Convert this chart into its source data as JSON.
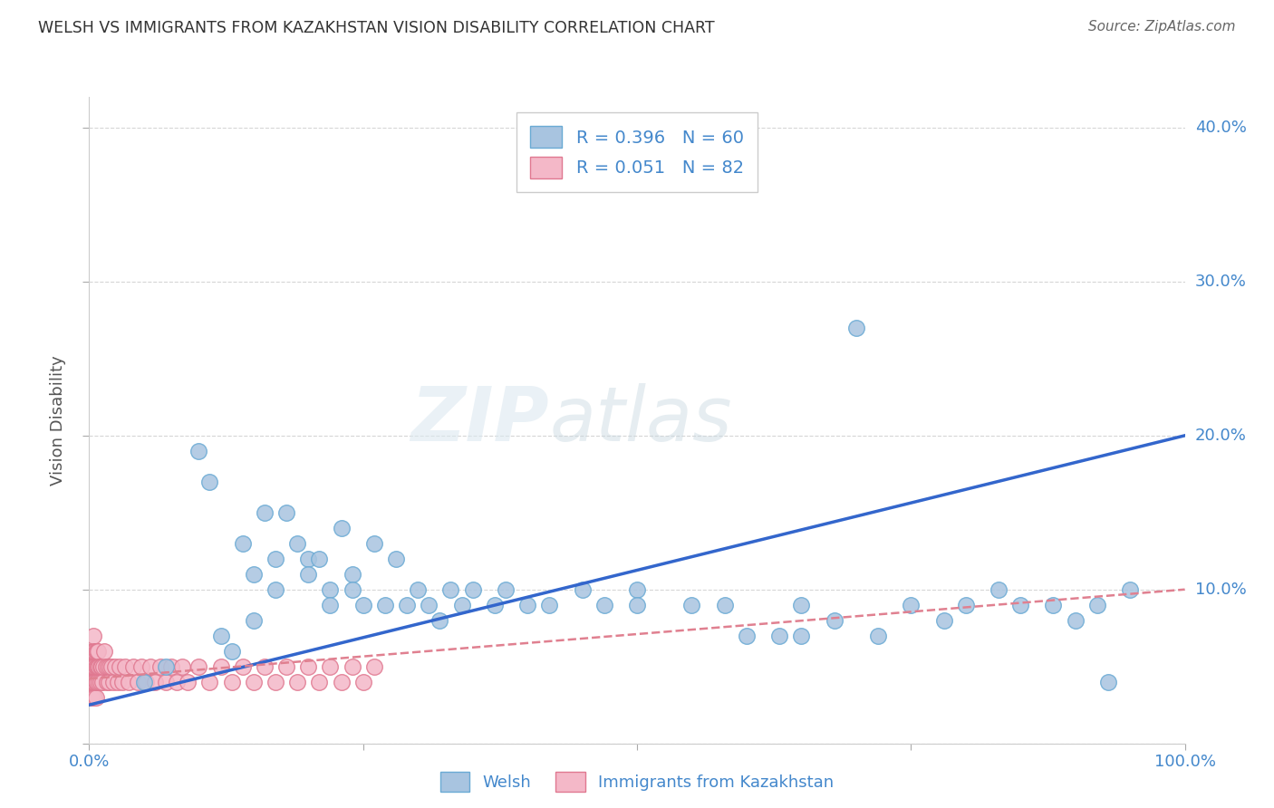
{
  "title": "WELSH VS IMMIGRANTS FROM KAZAKHSTAN VISION DISABILITY CORRELATION CHART",
  "source": "Source: ZipAtlas.com",
  "ylabel": "Vision Disability",
  "xlim": [
    0.0,
    1.0
  ],
  "ylim": [
    0.0,
    0.42
  ],
  "xticks": [
    0.0,
    0.25,
    0.5,
    0.75,
    1.0
  ],
  "xticklabels": [
    "0.0%",
    "",
    "",
    "",
    "100.0%"
  ],
  "yticks": [
    0.0,
    0.1,
    0.2,
    0.3,
    0.4
  ],
  "yticklabels": [
    "",
    "10.0%",
    "20.0%",
    "30.0%",
    "40.0%"
  ],
  "welsh_color": "#a8c4e0",
  "welsh_edge_color": "#6aaad4",
  "kazakh_color": "#f4b8c8",
  "kazakh_edge_color": "#e07890",
  "trendline_welsh_color": "#3366cc",
  "trendline_kazakh_color": "#e08090",
  "background_color": "#ffffff",
  "grid_color": "#cccccc",
  "R_welsh": 0.396,
  "N_welsh": 60,
  "R_kazakh": 0.051,
  "N_kazakh": 82,
  "legend_label_welsh": "Welsh",
  "legend_label_kazakh": "Immigrants from Kazakhstan",
  "title_color": "#404040",
  "axis_color": "#4488cc",
  "watermark_zip": "ZIP",
  "watermark_atlas": "atlas",
  "welsh_x": [
    0.05,
    0.07,
    0.1,
    0.11,
    0.12,
    0.13,
    0.14,
    0.15,
    0.15,
    0.16,
    0.17,
    0.17,
    0.18,
    0.19,
    0.2,
    0.2,
    0.21,
    0.22,
    0.22,
    0.23,
    0.24,
    0.24,
    0.25,
    0.26,
    0.27,
    0.28,
    0.29,
    0.3,
    0.31,
    0.32,
    0.33,
    0.34,
    0.35,
    0.37,
    0.38,
    0.4,
    0.42,
    0.45,
    0.47,
    0.5,
    0.5,
    0.55,
    0.58,
    0.6,
    0.63,
    0.65,
    0.68,
    0.7,
    0.72,
    0.75,
    0.65,
    0.78,
    0.8,
    0.83,
    0.85,
    0.88,
    0.9,
    0.92,
    0.93,
    0.95
  ],
  "welsh_y": [
    0.04,
    0.05,
    0.19,
    0.17,
    0.07,
    0.06,
    0.13,
    0.11,
    0.08,
    0.15,
    0.12,
    0.1,
    0.15,
    0.13,
    0.12,
    0.11,
    0.12,
    0.1,
    0.09,
    0.14,
    0.11,
    0.1,
    0.09,
    0.13,
    0.09,
    0.12,
    0.09,
    0.1,
    0.09,
    0.08,
    0.1,
    0.09,
    0.1,
    0.09,
    0.1,
    0.09,
    0.09,
    0.1,
    0.09,
    0.1,
    0.09,
    0.09,
    0.09,
    0.07,
    0.07,
    0.09,
    0.08,
    0.27,
    0.07,
    0.09,
    0.07,
    0.08,
    0.09,
    0.1,
    0.09,
    0.09,
    0.08,
    0.09,
    0.04,
    0.1
  ],
  "kazakh_x": [
    0.002,
    0.002,
    0.002,
    0.002,
    0.002,
    0.003,
    0.003,
    0.003,
    0.003,
    0.003,
    0.003,
    0.004,
    0.004,
    0.004,
    0.004,
    0.004,
    0.004,
    0.005,
    0.005,
    0.005,
    0.005,
    0.005,
    0.005,
    0.006,
    0.006,
    0.006,
    0.006,
    0.007,
    0.007,
    0.007,
    0.008,
    0.008,
    0.009,
    0.009,
    0.01,
    0.01,
    0.011,
    0.012,
    0.013,
    0.014,
    0.015,
    0.016,
    0.017,
    0.018,
    0.019,
    0.02,
    0.022,
    0.024,
    0.026,
    0.028,
    0.03,
    0.033,
    0.036,
    0.04,
    0.044,
    0.048,
    0.052,
    0.056,
    0.06,
    0.065,
    0.07,
    0.075,
    0.08,
    0.085,
    0.09,
    0.1,
    0.11,
    0.12,
    0.13,
    0.14,
    0.15,
    0.16,
    0.17,
    0.18,
    0.19,
    0.2,
    0.21,
    0.22,
    0.23,
    0.24,
    0.25,
    0.26
  ],
  "kazakh_y": [
    0.03,
    0.04,
    0.05,
    0.04,
    0.05,
    0.03,
    0.04,
    0.05,
    0.04,
    0.05,
    0.06,
    0.03,
    0.04,
    0.05,
    0.06,
    0.07,
    0.05,
    0.03,
    0.04,
    0.05,
    0.06,
    0.05,
    0.04,
    0.03,
    0.05,
    0.06,
    0.04,
    0.05,
    0.06,
    0.04,
    0.05,
    0.06,
    0.04,
    0.05,
    0.04,
    0.05,
    0.05,
    0.04,
    0.05,
    0.06,
    0.05,
    0.04,
    0.05,
    0.04,
    0.05,
    0.05,
    0.04,
    0.05,
    0.04,
    0.05,
    0.04,
    0.05,
    0.04,
    0.05,
    0.04,
    0.05,
    0.04,
    0.05,
    0.04,
    0.05,
    0.04,
    0.05,
    0.04,
    0.05,
    0.04,
    0.05,
    0.04,
    0.05,
    0.04,
    0.05,
    0.04,
    0.05,
    0.04,
    0.05,
    0.04,
    0.05,
    0.04,
    0.05,
    0.04,
    0.05,
    0.04,
    0.05
  ],
  "trendline_welsh_x0": 0.0,
  "trendline_welsh_y0": 0.025,
  "trendline_welsh_x1": 1.0,
  "trendline_welsh_y1": 0.2,
  "trendline_kazakh_x0": 0.0,
  "trendline_kazakh_y0": 0.042,
  "trendline_kazakh_x1": 1.0,
  "trendline_kazakh_y1": 0.1
}
